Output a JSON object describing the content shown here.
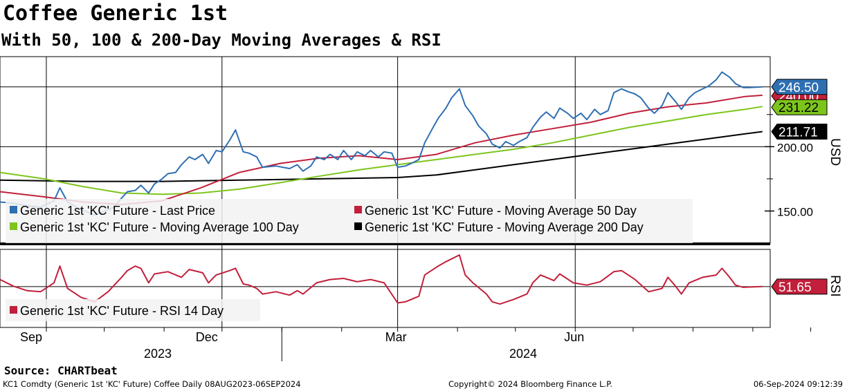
{
  "header": {
    "title": "Coffee Generic 1st",
    "subtitle": "With 50, 100 & 200-Day Moving Averages & RSI"
  },
  "chart_data": [
    {
      "type": "line",
      "panel": "price",
      "ylabel": "USD",
      "yticks": [
        "200.00",
        "150.00"
      ],
      "ylim": [
        125,
        270
      ],
      "x_months": [
        "Sep",
        "Dec",
        "Mar",
        "Jun"
      ],
      "x_years": [
        "2023",
        "2024"
      ],
      "x_range": [
        "2023-08-08",
        "2024-09-06"
      ],
      "legend_placement": "bottom-left",
      "series": [
        {
          "name": "Generic 1st 'KC' Future - Last Price",
          "color": "#2e6fb2",
          "last_value_label": "246.50",
          "points": [
            [
              "2023-08-08",
              157
            ],
            [
              "2023-08-15",
              156
            ],
            [
              "2023-08-22",
              154
            ],
            [
              "2023-08-29",
              153
            ],
            [
              "2023-09-05",
              158
            ],
            [
              "2023-09-08",
              168
            ],
            [
              "2023-09-12",
              157
            ],
            [
              "2023-09-19",
              151
            ],
            [
              "2023-09-26",
              147
            ],
            [
              "2023-10-03",
              151
            ],
            [
              "2023-10-06",
              153
            ],
            [
              "2023-10-10",
              160
            ],
            [
              "2023-10-13",
              165
            ],
            [
              "2023-10-17",
              166
            ],
            [
              "2023-10-20",
              170
            ],
            [
              "2023-10-24",
              164
            ],
            [
              "2023-10-27",
              171
            ],
            [
              "2023-10-31",
              175
            ],
            [
              "2023-11-03",
              179
            ],
            [
              "2023-11-07",
              180
            ],
            [
              "2023-11-10",
              186
            ],
            [
              "2023-11-14",
              192
            ],
            [
              "2023-11-17",
              190
            ],
            [
              "2023-11-21",
              194
            ],
            [
              "2023-11-24",
              187
            ],
            [
              "2023-11-28",
              197
            ],
            [
              "2023-12-01",
              196
            ],
            [
              "2023-12-05",
              205
            ],
            [
              "2023-12-08",
              213
            ],
            [
              "2023-12-12",
              196
            ],
            [
              "2023-12-15",
              195
            ],
            [
              "2023-12-19",
              192
            ],
            [
              "2023-12-22",
              184
            ],
            [
              "2023-12-29",
              185
            ],
            [
              "2024-01-05",
              183
            ],
            [
              "2024-01-09",
              186
            ],
            [
              "2024-01-12",
              181
            ],
            [
              "2024-01-16",
              185
            ],
            [
              "2024-01-19",
              192
            ],
            [
              "2024-01-23",
              190
            ],
            [
              "2024-01-26",
              194
            ],
            [
              "2024-01-30",
              190
            ],
            [
              "2024-02-02",
              197
            ],
            [
              "2024-02-06",
              190
            ],
            [
              "2024-02-09",
              196
            ],
            [
              "2024-02-13",
              193
            ],
            [
              "2024-02-16",
              197
            ],
            [
              "2024-02-20",
              192
            ],
            [
              "2024-02-23",
              196
            ],
            [
              "2024-02-27",
              195
            ],
            [
              "2024-03-01",
              184
            ],
            [
              "2024-03-05",
              185
            ],
            [
              "2024-03-08",
              187
            ],
            [
              "2024-03-12",
              190
            ],
            [
              "2024-03-15",
              203
            ],
            [
              "2024-03-19",
              214
            ],
            [
              "2024-03-22",
              222
            ],
            [
              "2024-03-26",
              230
            ],
            [
              "2024-03-29",
              238
            ],
            [
              "2024-04-02",
              245
            ],
            [
              "2024-04-05",
              232
            ],
            [
              "2024-04-09",
              224
            ],
            [
              "2024-04-12",
              216
            ],
            [
              "2024-04-16",
              210
            ],
            [
              "2024-04-19",
              202
            ],
            [
              "2024-04-23",
              199
            ],
            [
              "2024-04-26",
              204
            ],
            [
              "2024-04-30",
              201
            ],
            [
              "2024-05-03",
              204
            ],
            [
              "2024-05-07",
              207
            ],
            [
              "2024-05-10",
              215
            ],
            [
              "2024-05-14",
              223
            ],
            [
              "2024-05-17",
              227
            ],
            [
              "2024-05-21",
              222
            ],
            [
              "2024-05-24",
              230
            ],
            [
              "2024-05-28",
              226
            ],
            [
              "2024-05-31",
              222
            ],
            [
              "2024-06-04",
              226
            ],
            [
              "2024-06-07",
              221
            ],
            [
              "2024-06-11",
              229
            ],
            [
              "2024-06-14",
              225
            ],
            [
              "2024-06-18",
              228
            ],
            [
              "2024-06-21",
              242
            ],
            [
              "2024-06-25",
              245
            ],
            [
              "2024-06-28",
              243
            ],
            [
              "2024-07-02",
              241
            ],
            [
              "2024-07-05",
              238
            ],
            [
              "2024-07-09",
              230
            ],
            [
              "2024-07-12",
              226
            ],
            [
              "2024-07-16",
              232
            ],
            [
              "2024-07-19",
              242
            ],
            [
              "2024-07-23",
              235
            ],
            [
              "2024-07-26",
              229
            ],
            [
              "2024-07-30",
              238
            ],
            [
              "2024-08-02",
              242
            ],
            [
              "2024-08-06",
              245
            ],
            [
              "2024-08-09",
              247
            ],
            [
              "2024-08-13",
              252
            ],
            [
              "2024-08-16",
              258
            ],
            [
              "2024-08-20",
              254
            ],
            [
              "2024-08-23",
              249
            ],
            [
              "2024-08-27",
              246
            ],
            [
              "2024-08-30",
              246
            ],
            [
              "2024-09-06",
              246.5
            ]
          ]
        },
        {
          "name": "Generic 1st 'KC' Future - Moving Average 50 Day",
          "color": "#c21f3a",
          "last_value_label": "240.00",
          "points": [
            [
              "2023-08-08",
              165
            ],
            [
              "2023-08-31",
              161
            ],
            [
              "2023-09-20",
              157
            ],
            [
              "2023-10-10",
              155
            ],
            [
              "2023-10-31",
              158
            ],
            [
              "2023-11-20",
              168
            ],
            [
              "2023-12-10",
              180
            ],
            [
              "2023-12-31",
              187
            ],
            [
              "2024-01-20",
              191
            ],
            [
              "2024-02-10",
              193
            ],
            [
              "2024-03-01",
              190
            ],
            [
              "2024-03-21",
              194
            ],
            [
              "2024-04-10",
              203
            ],
            [
              "2024-04-30",
              209
            ],
            [
              "2024-05-20",
              214
            ],
            [
              "2024-06-09",
              219
            ],
            [
              "2024-06-29",
              226
            ],
            [
              "2024-07-19",
              231
            ],
            [
              "2024-08-08",
              234
            ],
            [
              "2024-08-28",
              239
            ],
            [
              "2024-09-06",
              240
            ]
          ]
        },
        {
          "name": "Generic 1st 'KC' Future - Moving Average 100 Day",
          "color": "#7dc51c",
          "last_value_label": "231.22",
          "points": [
            [
              "2023-08-08",
              180
            ],
            [
              "2023-08-31",
              175
            ],
            [
              "2023-09-20",
              169
            ],
            [
              "2023-10-10",
              164
            ],
            [
              "2023-10-31",
              163
            ],
            [
              "2023-11-20",
              164
            ],
            [
              "2023-12-10",
              167
            ],
            [
              "2023-12-31",
              172
            ],
            [
              "2024-01-20",
              177
            ],
            [
              "2024-02-10",
              182
            ],
            [
              "2024-03-01",
              186
            ],
            [
              "2024-03-21",
              190
            ],
            [
              "2024-04-10",
              194
            ],
            [
              "2024-04-30",
              198
            ],
            [
              "2024-05-20",
              203
            ],
            [
              "2024-06-09",
              209
            ],
            [
              "2024-06-29",
              215
            ],
            [
              "2024-07-19",
              220
            ],
            [
              "2024-08-08",
              225
            ],
            [
              "2024-08-28",
              229
            ],
            [
              "2024-09-06",
              231.22
            ]
          ]
        },
        {
          "name": "Generic 1st 'KC' Future - Moving Average 200 Day",
          "color": "#000000",
          "last_value_label": "211.71",
          "points": [
            [
              "2023-08-08",
              174
            ],
            [
              "2023-09-20",
              173
            ],
            [
              "2023-10-31",
              173
            ],
            [
              "2023-12-10",
              174
            ],
            [
              "2024-01-20",
              175
            ],
            [
              "2024-03-01",
              176
            ],
            [
              "2024-03-21",
              178
            ],
            [
              "2024-04-10",
              182
            ],
            [
              "2024-04-30",
              186
            ],
            [
              "2024-05-20",
              190
            ],
            [
              "2024-06-09",
              194
            ],
            [
              "2024-06-29",
              198
            ],
            [
              "2024-07-19",
              202
            ],
            [
              "2024-08-08",
              206
            ],
            [
              "2024-08-28",
              210
            ],
            [
              "2024-09-06",
              211.71
            ]
          ]
        }
      ]
    },
    {
      "type": "line",
      "panel": "rsi",
      "ylabel": "RSI",
      "ylim": [
        15,
        85
      ],
      "legend_placement": "bottom-left",
      "series": [
        {
          "name": "Generic 1st 'KC' Future - RSI 14 Day",
          "color": "#c21f3a",
          "last_value_label": "51.65",
          "points": [
            [
              "2023-08-08",
              58
            ],
            [
              "2023-08-15",
              52
            ],
            [
              "2023-08-22",
              48
            ],
            [
              "2023-08-29",
              47
            ],
            [
              "2023-09-05",
              55
            ],
            [
              "2023-09-08",
              70
            ],
            [
              "2023-09-12",
              50
            ],
            [
              "2023-09-19",
              42
            ],
            [
              "2023-09-26",
              38
            ],
            [
              "2023-10-03",
              47
            ],
            [
              "2023-10-10",
              60
            ],
            [
              "2023-10-13",
              66
            ],
            [
              "2023-10-17",
              70
            ],
            [
              "2023-10-20",
              68
            ],
            [
              "2023-10-24",
              55
            ],
            [
              "2023-10-27",
              63
            ],
            [
              "2023-11-03",
              65
            ],
            [
              "2023-11-10",
              60
            ],
            [
              "2023-11-14",
              67
            ],
            [
              "2023-11-21",
              64
            ],
            [
              "2023-11-24",
              55
            ],
            [
              "2023-11-28",
              62
            ],
            [
              "2023-12-05",
              66
            ],
            [
              "2023-12-08",
              68
            ],
            [
              "2023-12-12",
              54
            ],
            [
              "2023-12-15",
              53
            ],
            [
              "2023-12-19",
              50
            ],
            [
              "2023-12-22",
              45
            ],
            [
              "2023-12-29",
              47
            ],
            [
              "2024-01-05",
              44
            ],
            [
              "2024-01-09",
              48
            ],
            [
              "2024-01-12",
              45
            ],
            [
              "2024-01-19",
              55
            ],
            [
              "2024-01-26",
              58
            ],
            [
              "2024-02-02",
              59
            ],
            [
              "2024-02-09",
              56
            ],
            [
              "2024-02-16",
              58
            ],
            [
              "2024-02-23",
              55
            ],
            [
              "2024-03-01",
              37
            ],
            [
              "2024-03-05",
              38
            ],
            [
              "2024-03-12",
              43
            ],
            [
              "2024-03-15",
              62
            ],
            [
              "2024-03-22",
              70
            ],
            [
              "2024-03-26",
              74
            ],
            [
              "2024-04-02",
              80
            ],
            [
              "2024-04-05",
              62
            ],
            [
              "2024-04-09",
              55
            ],
            [
              "2024-04-16",
              45
            ],
            [
              "2024-04-19",
              38
            ],
            [
              "2024-04-23",
              36
            ],
            [
              "2024-04-30",
              40
            ],
            [
              "2024-05-07",
              45
            ],
            [
              "2024-05-10",
              55
            ],
            [
              "2024-05-14",
              62
            ],
            [
              "2024-05-21",
              57
            ],
            [
              "2024-05-24",
              63
            ],
            [
              "2024-05-31",
              55
            ],
            [
              "2024-06-07",
              53
            ],
            [
              "2024-06-14",
              56
            ],
            [
              "2024-06-21",
              65
            ],
            [
              "2024-06-25",
              66
            ],
            [
              "2024-07-02",
              58
            ],
            [
              "2024-07-09",
              47
            ],
            [
              "2024-07-16",
              50
            ],
            [
              "2024-07-19",
              60
            ],
            [
              "2024-07-23",
              52
            ],
            [
              "2024-07-26",
              45
            ],
            [
              "2024-07-30",
              55
            ],
            [
              "2024-08-06",
              60
            ],
            [
              "2024-08-13",
              62
            ],
            [
              "2024-08-16",
              68
            ],
            [
              "2024-08-20",
              60
            ],
            [
              "2024-08-23",
              53
            ],
            [
              "2024-08-27",
              51
            ],
            [
              "2024-09-06",
              51.65
            ]
          ]
        }
      ]
    }
  ],
  "footer": {
    "source": "Source: CHARTbeat",
    "ticker": "KC1 Comdty (Generic 1st 'KC' Future) Coffee  Daily 08AUG2023-06SEP2024",
    "copyright": "Copyright© 2024 Bloomberg Finance L.P.",
    "timestamp": "06-Sep-2024 09:12:39"
  }
}
